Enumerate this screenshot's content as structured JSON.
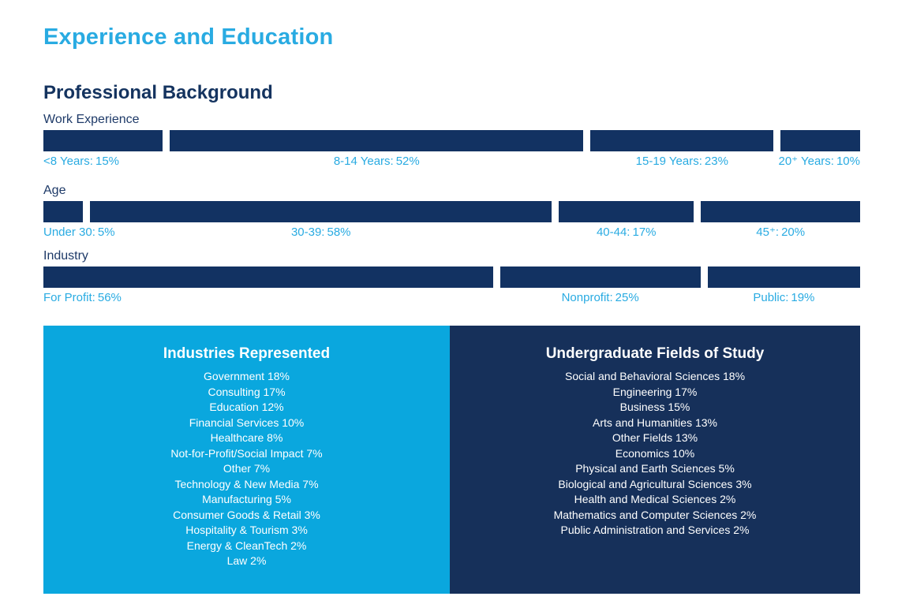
{
  "header": {
    "title": "Experience and Education"
  },
  "section": {
    "title": "Professional Background"
  },
  "colors": {
    "accent_cyan": "#29ABE2",
    "panel_cyan": "#0AA7DE",
    "bar_navy": "#123262",
    "panel_navy": "#16305A",
    "heading_navy": "#14335F",
    "panel_text": "#FFFFFF"
  },
  "rows": [
    {
      "label": "Work Experience",
      "segments": [
        {
          "name": "<8 Years:",
          "pct": "15%",
          "value": 15
        },
        {
          "name": "8-14 Years:",
          "pct": "52%",
          "value": 52
        },
        {
          "name": "15-19 Years:",
          "pct": "23%",
          "value": 23
        },
        {
          "name": "20⁺ Years:",
          "pct": "10%",
          "value": 10
        }
      ]
    },
    {
      "label": "Age",
      "segments": [
        {
          "name": "Under 30:",
          "pct": "5%",
          "value": 5
        },
        {
          "name": "30-39:",
          "pct": "58%",
          "value": 58
        },
        {
          "name": "40-44:",
          "pct": "17%",
          "value": 17
        },
        {
          "name": "45⁺:",
          "pct": "20%",
          "value": 20
        }
      ]
    },
    {
      "label": "Industry",
      "segments": [
        {
          "name": "For Profit:",
          "pct": "56%",
          "value": 56
        },
        {
          "name": "Nonprofit:",
          "pct": "25%",
          "value": 25
        },
        {
          "name": "Public:",
          "pct": "19%",
          "value": 19
        }
      ]
    }
  ],
  "panels": [
    {
      "title": "Industries Represented",
      "items": [
        "Government 18%",
        "Consulting 17%",
        "Education 12%",
        "Financial Services 10%",
        "Healthcare 8%",
        "Not-for-Profit/Social Impact 7%",
        "Other 7%",
        "Technology & New Media 7%",
        "Manufacturing 5%",
        "Consumer Goods & Retail 3%",
        "Hospitality & Tourism 3%",
        "Energy & CleanTech 2%",
        "Law 2%"
      ]
    },
    {
      "title": "Undergraduate Fields of Study",
      "items": [
        "Social and Behavioral Sciences 18%",
        "Engineering 17%",
        "Business 15%",
        "Arts and Humanities 13%",
        "Other Fields 13%",
        "Economics 10%",
        "Physical and Earth Sciences 5%",
        "Biological and Agricultural Sciences 3%",
        "Health and Medical Sciences 2%",
        "Mathematics and Computer Sciences 2%",
        "Public Administration and Services 2%"
      ]
    }
  ],
  "chart_data": [
    {
      "type": "bar",
      "title": "Work Experience",
      "layout": "horizontal-100%-stacked",
      "categories": [
        "<8 Years",
        "8-14 Years",
        "15-19 Years",
        "20+ Years"
      ],
      "values": [
        15,
        52,
        23,
        10
      ],
      "unit": "%",
      "bar_color": "#123262",
      "label_color": "#29ABE2"
    },
    {
      "type": "bar",
      "title": "Age",
      "layout": "horizontal-100%-stacked",
      "categories": [
        "Under 30",
        "30-39",
        "40-44",
        "45+"
      ],
      "values": [
        5,
        58,
        17,
        20
      ],
      "unit": "%",
      "bar_color": "#123262",
      "label_color": "#29ABE2"
    },
    {
      "type": "bar",
      "title": "Industry",
      "layout": "horizontal-100%-stacked",
      "categories": [
        "For Profit",
        "Nonprofit",
        "Public"
      ],
      "values": [
        56,
        25,
        19
      ],
      "unit": "%",
      "bar_color": "#123262",
      "label_color": "#29ABE2"
    },
    {
      "type": "table",
      "title": "Industries Represented",
      "categories": [
        "Government",
        "Consulting",
        "Education",
        "Financial Services",
        "Healthcare",
        "Not-for-Profit/Social Impact",
        "Other",
        "Technology & New Media",
        "Manufacturing",
        "Consumer Goods & Retail",
        "Hospitality & Tourism",
        "Energy & CleanTech",
        "Law"
      ],
      "values": [
        18,
        17,
        12,
        10,
        8,
        7,
        7,
        7,
        5,
        3,
        3,
        2,
        2
      ],
      "unit": "%"
    },
    {
      "type": "table",
      "title": "Undergraduate Fields of Study",
      "categories": [
        "Social and Behavioral Sciences",
        "Engineering",
        "Business",
        "Arts and Humanities",
        "Other Fields",
        "Economics",
        "Physical and Earth Sciences",
        "Biological and Agricultural Sciences",
        "Health and Medical Sciences",
        "Mathematics and Computer Sciences",
        "Public Administration and Services"
      ],
      "values": [
        18,
        17,
        15,
        13,
        13,
        10,
        5,
        3,
        2,
        2,
        2
      ],
      "unit": "%"
    }
  ]
}
